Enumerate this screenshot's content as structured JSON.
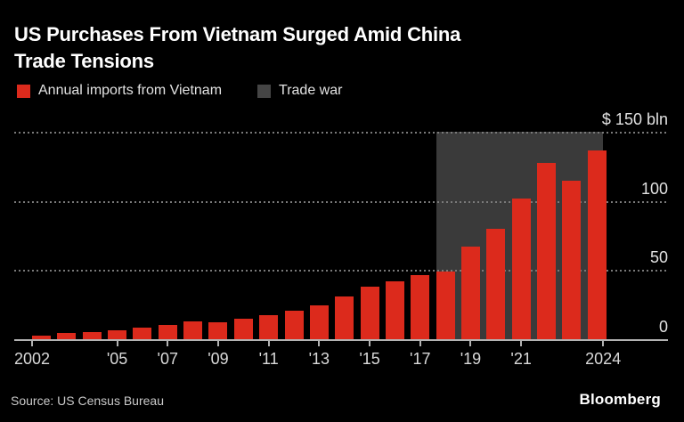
{
  "header": {
    "title_line1": "US Purchases From Vietnam Surged Amid China",
    "title_line2": "Trade Tensions"
  },
  "legend": {
    "items": [
      {
        "id": "imports",
        "label": "Annual imports from Vietnam",
        "color": "#dc2a1c"
      },
      {
        "id": "trade-war",
        "label": "Trade war",
        "color": "#454545"
      }
    ]
  },
  "colors": {
    "background": "#000000",
    "bar_red": "#dc2a1c",
    "trade_war_region": "#3a3a3a",
    "grid_dotted": "#7a7a7a",
    "axis_line": "#b3b3b3",
    "axis_text": "#d9d9d9"
  },
  "chart_data": {
    "type": "bar",
    "title": "US Purchases From Vietnam Surged Amid China Trade Tensions",
    "series_name": "Annual imports from Vietnam",
    "unit": "$ bln",
    "categories": [
      2002,
      2003,
      2004,
      2005,
      2006,
      2007,
      2008,
      2009,
      2010,
      2011,
      2012,
      2013,
      2014,
      2015,
      2016,
      2017,
      2018,
      2019,
      2020,
      2021,
      2022,
      2023,
      2024
    ],
    "values": [
      2.4,
      4.6,
      5.3,
      6.6,
      8.6,
      10.6,
      12.9,
      12.3,
      14.9,
      17.5,
      20.3,
      24.6,
      30.6,
      38.1,
      42.1,
      46.5,
      49.2,
      66.7,
      79.6,
      101.9,
      127.5,
      114.4,
      136.6
    ],
    "ylim": [
      0,
      150
    ],
    "yticks": [
      0,
      50,
      100,
      150
    ],
    "ytick_labels": [
      "0",
      "50",
      "100",
      "$ 150 bln"
    ],
    "xtick_years": [
      2002,
      2005,
      2007,
      2009,
      2011,
      2013,
      2015,
      2017,
      2019,
      2021,
      2024
    ],
    "xtick_labels": [
      "2002",
      "'05",
      "'07",
      "'09",
      "'11",
      "'13",
      "'15",
      "'17",
      "'19",
      "'21",
      "2024"
    ],
    "grid": "dotted-horizontal",
    "legend_position": "top-left",
    "annotations": [
      {
        "type": "region",
        "label": "Trade war",
        "x_start": 2018,
        "x_end": 2024,
        "y_top": 150
      }
    ]
  },
  "footer": {
    "source": "Source: US Census Bureau",
    "brand": "Bloomberg"
  }
}
